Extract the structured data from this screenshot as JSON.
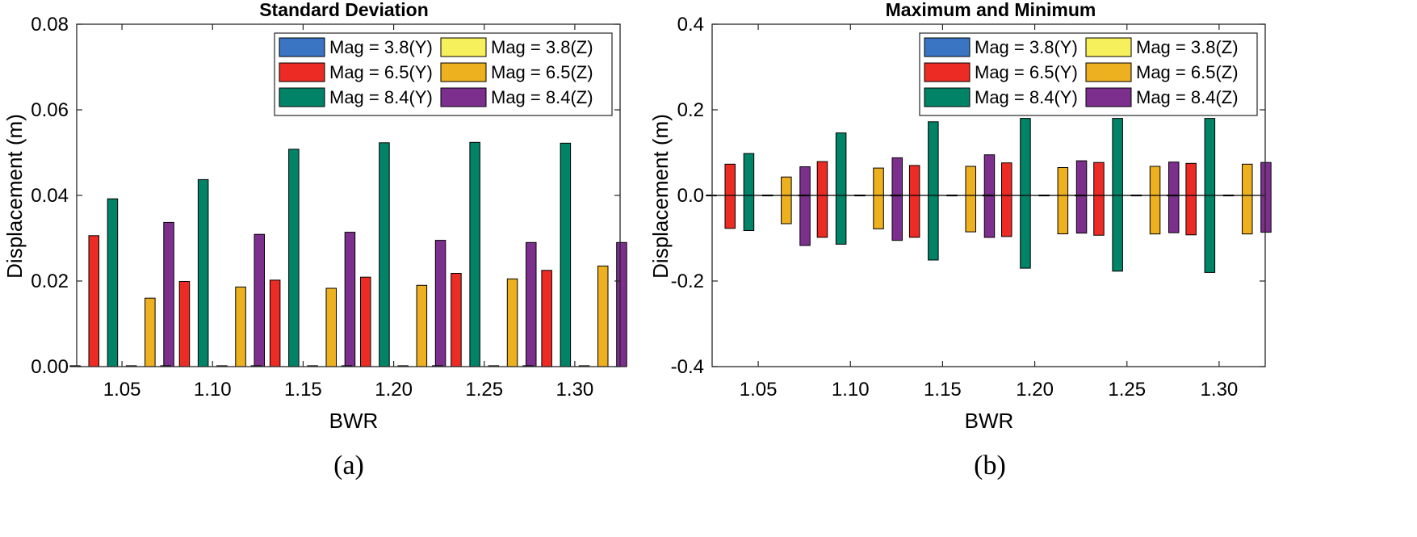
{
  "chart_data": [
    {
      "type": "bar",
      "title": "Standard Deviation",
      "caption": "(a)",
      "xlabel": "BWR",
      "ylabel": "Displacement (m)",
      "ylim": [
        0,
        0.08
      ],
      "yticks": [
        0,
        0.02,
        0.04,
        0.06,
        0.08
      ],
      "ytick_labels": [
        "0.00",
        "0.02",
        "0.04",
        "0.06",
        "0.08"
      ],
      "categories": [
        "1.05",
        "1.10",
        "1.15",
        "1.20",
        "1.25",
        "1.30"
      ],
      "legend_position": "top-right",
      "series": [
        {
          "name": "Mag = 3.8(Y)",
          "color": "#3a75c4",
          "values": [
            0.0002,
            0.0002,
            0.0002,
            0.0002,
            0.0002,
            0.0002
          ]
        },
        {
          "name": "Mag = 6.5(Y)",
          "color": "#ec2b24",
          "values": [
            0.0306,
            0.0199,
            0.0202,
            0.0209,
            0.0218,
            0.0225
          ]
        },
        {
          "name": "Mag = 8.4(Y)",
          "color": "#008367",
          "values": [
            0.0392,
            0.0437,
            0.0508,
            0.0523,
            0.0524,
            0.0522
          ]
        },
        {
          "name": "Mag = 3.8(Z)",
          "color": "#f5f05c",
          "values": [
            0.0002,
            0.0002,
            0.0002,
            0.0002,
            0.0002,
            0.0002
          ]
        },
        {
          "name": "Mag = 6.5(Z)",
          "color": "#edb01f",
          "values": [
            0.016,
            0.0186,
            0.0183,
            0.019,
            0.0205,
            0.0235
          ]
        },
        {
          "name": "Mag = 8.4(Z)",
          "color": "#7d2f8e",
          "values": [
            0.0337,
            0.0309,
            0.0314,
            0.0295,
            0.029,
            0.029
          ]
        }
      ]
    },
    {
      "type": "bar",
      "title": "Maximum and Minimum",
      "caption": "(b)",
      "xlabel": "BWR",
      "ylabel": "Displacement (m)",
      "ylim": [
        -0.4,
        0.4
      ],
      "yticks": [
        -0.4,
        -0.2,
        0,
        0.2,
        0.4
      ],
      "ytick_labels": [
        "-0.4",
        "-0.2",
        "0.0",
        "0.2",
        "0.4"
      ],
      "categories": [
        "1.05",
        "1.10",
        "1.15",
        "1.20",
        "1.25",
        "1.30"
      ],
      "legend_position": "top-right",
      "series": [
        {
          "name": "Mag = 3.8(Y)",
          "color": "#3a75c4",
          "max": [
            0.001,
            0.001,
            0.001,
            0.001,
            0.001,
            0.001
          ],
          "min": [
            -0.001,
            -0.001,
            -0.001,
            -0.001,
            -0.001,
            -0.001
          ]
        },
        {
          "name": "Mag = 6.5(Y)",
          "color": "#ec2b24",
          "max": [
            0.073,
            0.079,
            0.07,
            0.076,
            0.077,
            0.075
          ],
          "min": [
            -0.077,
            -0.098,
            -0.098,
            -0.096,
            -0.093,
            -0.092
          ]
        },
        {
          "name": "Mag = 8.4(Y)",
          "color": "#008367",
          "max": [
            0.098,
            0.146,
            0.172,
            0.18,
            0.18,
            0.18
          ],
          "min": [
            -0.082,
            -0.114,
            -0.151,
            -0.17,
            -0.177,
            -0.18
          ]
        },
        {
          "name": "Mag = 3.8(Z)",
          "color": "#f5f05c",
          "max": [
            0.001,
            0.001,
            0.001,
            0.001,
            0.001,
            0.001
          ],
          "min": [
            -0.001,
            -0.001,
            -0.001,
            -0.001,
            -0.001,
            -0.001
          ]
        },
        {
          "name": "Mag = 6.5(Z)",
          "color": "#edb01f",
          "max": [
            0.043,
            0.064,
            0.068,
            0.065,
            0.068,
            0.073
          ],
          "min": [
            -0.066,
            -0.078,
            -0.085,
            -0.09,
            -0.09,
            -0.09
          ]
        },
        {
          "name": "Mag = 8.4(Z)",
          "color": "#7d2f8e",
          "max": [
            0.067,
            0.088,
            0.095,
            0.081,
            0.078,
            0.077
          ],
          "min": [
            -0.117,
            -0.105,
            -0.098,
            -0.088,
            -0.087,
            -0.086
          ]
        }
      ]
    }
  ]
}
